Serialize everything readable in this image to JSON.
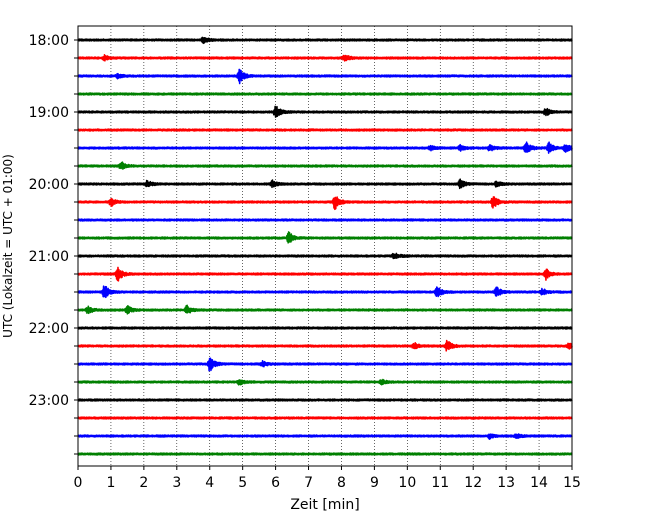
{
  "chart_data": {
    "type": "line",
    "title": "",
    "xlabel": "Zeit  [min]",
    "ylabel": "UTC (Lokalzeit = UTC + 01:00)",
    "xlim": [
      0,
      15
    ],
    "x_ticks": [
      "0",
      "1",
      "2",
      "3",
      "4",
      "5",
      "6",
      "7",
      "8",
      "9",
      "10",
      "11",
      "12",
      "13",
      "14",
      "15"
    ],
    "y_tick_labels": [
      "18:00",
      "19:00",
      "20:00",
      "21:00",
      "22:00",
      "23:00"
    ],
    "y_tick_times": [
      "18:00",
      "18:15",
      "18:30",
      "18:45",
      "19:00",
      "19:15",
      "19:30",
      "19:45",
      "20:00",
      "20:15",
      "20:30",
      "20:45",
      "21:00",
      "21:15",
      "21:30",
      "21:45",
      "22:00",
      "22:15",
      "22:30",
      "22:45",
      "23:00",
      "23:15",
      "23:30",
      "23:45"
    ],
    "grid": "vertical dotted",
    "trace_colors": [
      "#000000",
      "#ff0000",
      "#0000ff",
      "#008000"
    ],
    "series": [
      {
        "start": "18:00",
        "color": "#000000",
        "events": [
          [
            3.8,
            0.25
          ]
        ]
      },
      {
        "start": "18:15",
        "color": "#ff0000",
        "events": [
          [
            0.8,
            0.2
          ],
          [
            8.1,
            0.25
          ]
        ]
      },
      {
        "start": "18:30",
        "color": "#0000ff",
        "events": [
          [
            4.9,
            0.55
          ],
          [
            1.2,
            0.15
          ]
        ]
      },
      {
        "start": "18:45",
        "color": "#008000",
        "events": []
      },
      {
        "start": "19:00",
        "color": "#000000",
        "events": [
          [
            6.0,
            0.5
          ],
          [
            14.2,
            0.3
          ]
        ]
      },
      {
        "start": "19:15",
        "color": "#ff0000",
        "events": []
      },
      {
        "start": "19:30",
        "color": "#0000ff",
        "events": [
          [
            10.7,
            0.2
          ],
          [
            11.6,
            0.2
          ],
          [
            12.5,
            0.25
          ],
          [
            13.6,
            0.5
          ],
          [
            14.3,
            0.4
          ],
          [
            14.8,
            0.35
          ]
        ]
      },
      {
        "start": "19:45",
        "color": "#008000",
        "events": [
          [
            1.3,
            0.35
          ]
        ]
      },
      {
        "start": "20:00",
        "color": "#000000",
        "events": [
          [
            2.1,
            0.25
          ],
          [
            5.9,
            0.25
          ],
          [
            11.6,
            0.35
          ],
          [
            12.7,
            0.2
          ]
        ]
      },
      {
        "start": "20:15",
        "color": "#ff0000",
        "events": [
          [
            1.0,
            0.35
          ],
          [
            7.8,
            0.6
          ],
          [
            12.6,
            0.5
          ]
        ]
      },
      {
        "start": "20:30",
        "color": "#0000ff",
        "events": []
      },
      {
        "start": "20:45",
        "color": "#008000",
        "events": [
          [
            6.4,
            0.45
          ]
        ]
      },
      {
        "start": "21:00",
        "color": "#000000",
        "events": [
          [
            9.6,
            0.25
          ]
        ]
      },
      {
        "start": "21:15",
        "color": "#ff0000",
        "events": [
          [
            1.2,
            0.6
          ],
          [
            14.2,
            0.45
          ]
        ]
      },
      {
        "start": "21:30",
        "color": "#0000ff",
        "events": [
          [
            0.8,
            0.55
          ],
          [
            10.9,
            0.45
          ],
          [
            12.7,
            0.4
          ],
          [
            14.1,
            0.25
          ]
        ]
      },
      {
        "start": "21:45",
        "color": "#008000",
        "events": [
          [
            0.3,
            0.3
          ],
          [
            1.5,
            0.3
          ],
          [
            3.3,
            0.35
          ]
        ]
      },
      {
        "start": "22:00",
        "color": "#000000",
        "events": []
      },
      {
        "start": "22:15",
        "color": "#ff0000",
        "events": [
          [
            10.2,
            0.25
          ],
          [
            11.2,
            0.45
          ],
          [
            14.9,
            0.2
          ]
        ]
      },
      {
        "start": "22:30",
        "color": "#0000ff",
        "events": [
          [
            4.0,
            0.6
          ],
          [
            5.6,
            0.2
          ]
        ]
      },
      {
        "start": "22:45",
        "color": "#008000",
        "events": [
          [
            4.9,
            0.2
          ],
          [
            9.2,
            0.2
          ]
        ]
      },
      {
        "start": "23:00",
        "color": "#000000",
        "events": []
      },
      {
        "start": "23:15",
        "color": "#ff0000",
        "events": []
      },
      {
        "start": "23:30",
        "color": "#0000ff",
        "events": [
          [
            12.5,
            0.2
          ],
          [
            13.3,
            0.2
          ]
        ]
      },
      {
        "start": "23:45",
        "color": "#008000",
        "events": []
      }
    ]
  }
}
